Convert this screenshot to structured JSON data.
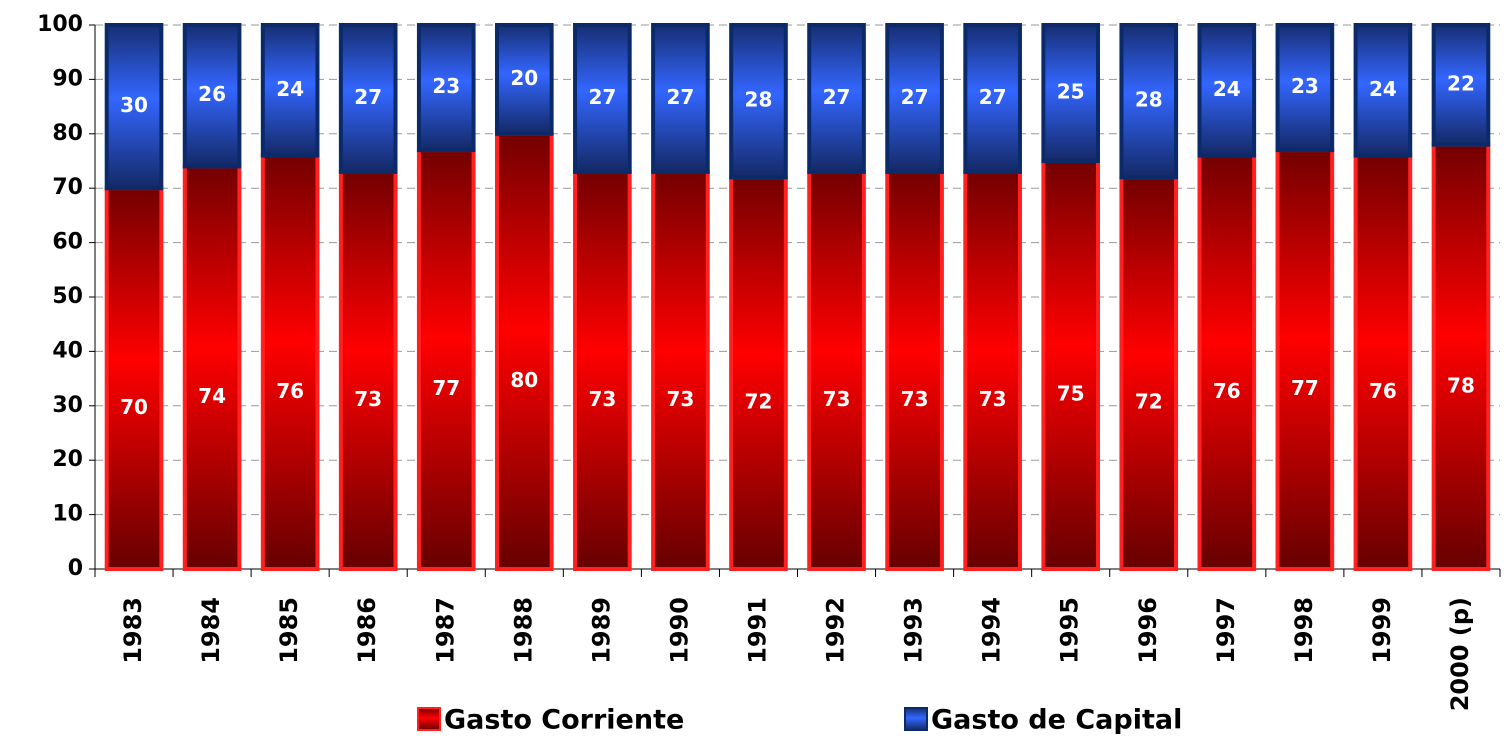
{
  "chart_data": {
    "type": "stacked-bar",
    "categories": [
      "1983",
      "1984",
      "1985",
      "1986",
      "1987",
      "1988",
      "1989",
      "1990",
      "1991",
      "1992",
      "1993",
      "1994",
      "1995",
      "1996",
      "1997",
      "1998",
      "1999",
      "2000 (p)"
    ],
    "series": [
      {
        "name": "Gasto Corriente",
        "color": "#ff0000",
        "values": [
          70,
          74,
          76,
          73,
          77,
          80,
          73,
          73,
          72,
          73,
          73,
          73,
          75,
          72,
          76,
          77,
          76,
          78
        ]
      },
      {
        "name": "Gasto de Capital",
        "color": "#3366ff",
        "values": [
          30,
          26,
          24,
          27,
          23,
          20,
          27,
          27,
          28,
          27,
          27,
          27,
          25,
          28,
          24,
          23,
          24,
          22
        ]
      }
    ],
    "ylim": [
      0,
      100
    ],
    "yticks": [
      0,
      10,
      20,
      30,
      40,
      50,
      60,
      70,
      80,
      90,
      100
    ],
    "grid": true,
    "legend": "bottom"
  }
}
